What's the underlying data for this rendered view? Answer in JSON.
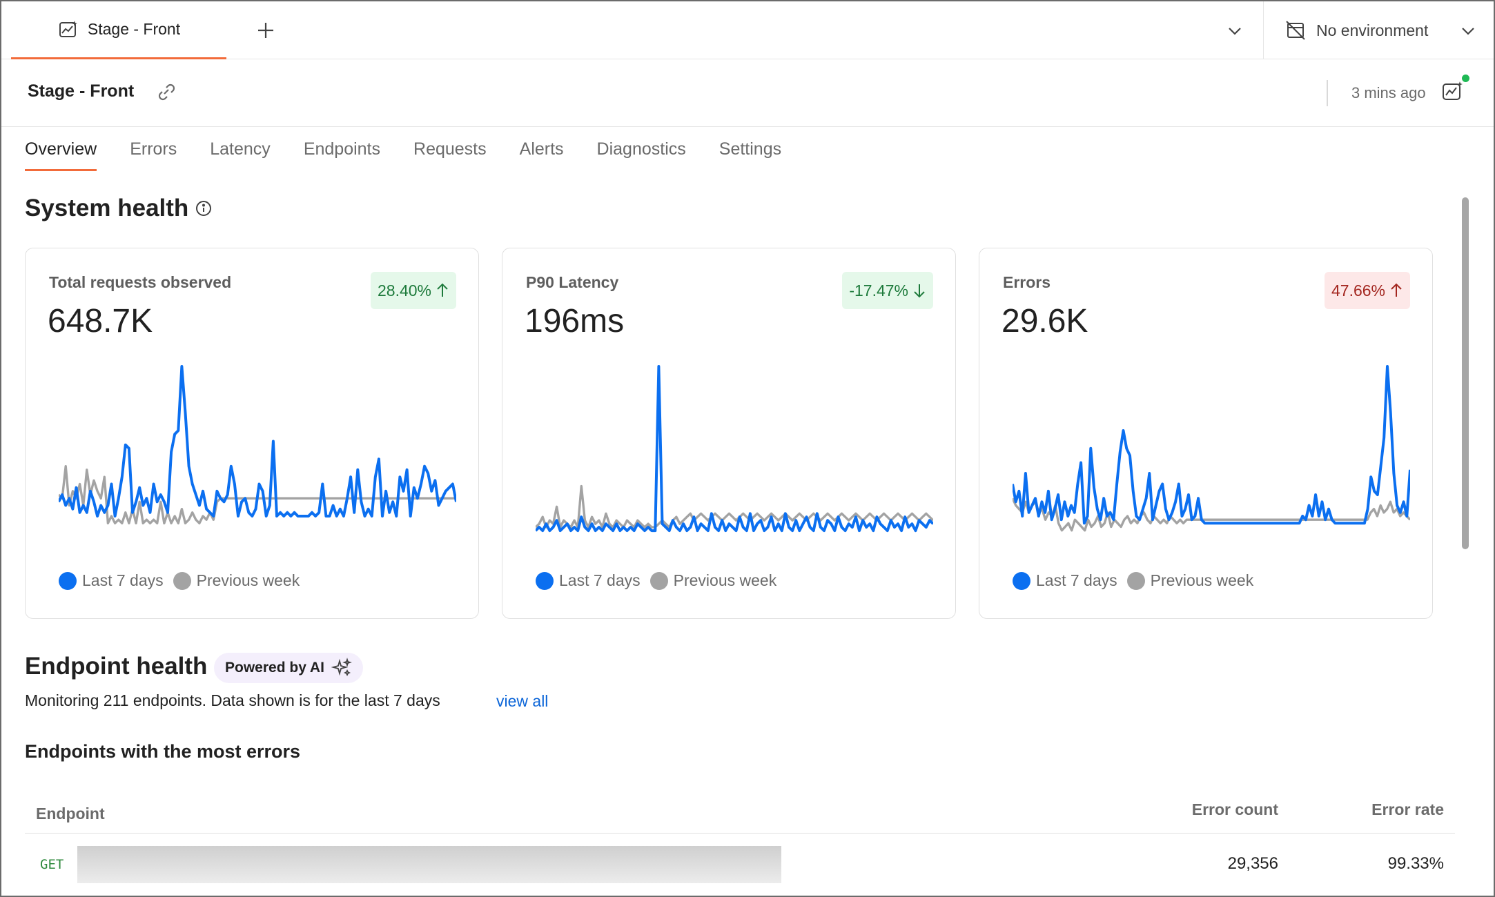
{
  "tabbar": {
    "active_tab": "Stage - Front",
    "environment": "No environment"
  },
  "header": {
    "title": "Stage - Front",
    "updated": "3 mins ago"
  },
  "nav": {
    "items": [
      "Overview",
      "Errors",
      "Latency",
      "Endpoints",
      "Requests",
      "Alerts",
      "Diagnostics",
      "Settings"
    ],
    "active": "Overview"
  },
  "system_health": {
    "title": "System health",
    "legend": {
      "current": "Last 7 days",
      "previous": "Previous week"
    },
    "cards": [
      {
        "label": "Total requests observed",
        "value": "648.7K",
        "change": "28.40%",
        "direction": "up",
        "status": "good"
      },
      {
        "label": "P90 Latency",
        "value": "196ms",
        "change": "-17.47%",
        "direction": "down",
        "status": "good"
      },
      {
        "label": "Errors",
        "value": "29.6K",
        "change": "47.66%",
        "direction": "up",
        "status": "bad"
      }
    ]
  },
  "colors": {
    "accent": "#f26b3a",
    "current_series": "#0b6ff0",
    "previous_series": "#a3a3a3",
    "link": "#0b65d8"
  },
  "chart_data": [
    {
      "type": "line",
      "series": [
        {
          "name": "Last 7 days",
          "values": [
            20,
            24,
            18,
            22,
            16,
            28,
            14,
            18,
            14,
            26,
            20,
            12,
            18,
            14,
            18,
            30,
            12,
            22,
            34,
            52,
            50,
            14,
            20,
            28,
            18,
            22,
            14,
            30,
            20,
            24,
            20,
            14,
            48,
            58,
            60,
            96,
            70,
            40,
            30,
            24,
            18,
            26,
            16,
            14,
            12,
            26,
            22,
            20,
            24,
            40,
            30,
            12,
            20,
            22,
            14,
            12,
            16,
            30,
            26,
            12,
            18,
            54,
            12,
            14,
            12,
            14,
            12,
            14,
            12,
            12,
            12,
            12,
            14,
            12,
            14,
            30,
            12,
            12,
            18,
            12,
            16,
            12,
            22,
            34,
            14,
            38,
            20,
            12,
            16,
            12,
            34,
            44,
            12,
            26,
            14,
            20,
            12,
            34,
            26,
            38,
            12,
            28,
            22,
            30,
            40,
            36,
            26,
            32,
            18,
            22,
            26,
            28,
            30,
            20
          ],
          "note": ""
        },
        {
          "name": "Previous week",
          "values": [
            24,
            22,
            40,
            18,
            26,
            22,
            30,
            18,
            38,
            24,
            32,
            26,
            22,
            34,
            8,
            12,
            8,
            10,
            8,
            14,
            8,
            16,
            8,
            20,
            8,
            10,
            8,
            10,
            8,
            20,
            8,
            14,
            8,
            12,
            8,
            16,
            8,
            10,
            14,
            10,
            8,
            12,
            10,
            14,
            10,
            20,
            22,
            22,
            22,
            22,
            22,
            22,
            22,
            22,
            22,
            22,
            22,
            22,
            22,
            22,
            22,
            22,
            22,
            22,
            22,
            22,
            22,
            22,
            22,
            22,
            22,
            22,
            22,
            22,
            22,
            22,
            22,
            22,
            22,
            22,
            22,
            22,
            22,
            22,
            22,
            22,
            22,
            22,
            22,
            22,
            22,
            22,
            22,
            22,
            22,
            22,
            22,
            22,
            22,
            22,
            22,
            22,
            22,
            22,
            22,
            22,
            22,
            22,
            22,
            22,
            22,
            22,
            22,
            22
          ]
        }
      ]
    },
    {
      "type": "line",
      "series": [
        {
          "name": "Last 7 days",
          "values": [
            4,
            6,
            4,
            8,
            4,
            6,
            10,
            4,
            6,
            8,
            4,
            6,
            4,
            12,
            6,
            4,
            8,
            4,
            6,
            4,
            8,
            6,
            4,
            8,
            4,
            6,
            4,
            6,
            4,
            8,
            6,
            4,
            6,
            4,
            4,
            100,
            8,
            6,
            4,
            10,
            6,
            4,
            8,
            4,
            6,
            12,
            4,
            8,
            6,
            4,
            14,
            6,
            4,
            10,
            4,
            8,
            6,
            4,
            12,
            6,
            4,
            14,
            4,
            8,
            10,
            4,
            6,
            12,
            4,
            8,
            4,
            14,
            6,
            4,
            10,
            4,
            8,
            12,
            6,
            4,
            14,
            6,
            4,
            10,
            8,
            4,
            12,
            6,
            4,
            8,
            6,
            12,
            4,
            10,
            6,
            8,
            4,
            12,
            8,
            6,
            4,
            10,
            6,
            8,
            4,
            12,
            6,
            8,
            4,
            10,
            8,
            6,
            10,
            8
          ],
          "note": ""
        },
        {
          "name": "Previous week",
          "values": [
            6,
            8,
            12,
            6,
            10,
            8,
            18,
            6,
            10,
            8,
            6,
            10,
            6,
            30,
            10,
            6,
            12,
            8,
            10,
            6,
            14,
            8,
            6,
            10,
            8,
            6,
            10,
            8,
            6,
            10,
            8,
            6,
            8,
            6,
            6,
            8,
            10,
            8,
            6,
            10,
            12,
            8,
            10,
            12,
            14,
            10,
            12,
            14,
            12,
            10,
            12,
            14,
            12,
            10,
            12,
            14,
            12,
            10,
            12,
            14,
            12,
            10,
            12,
            14,
            12,
            10,
            12,
            14,
            12,
            10,
            12,
            14,
            12,
            10,
            12,
            14,
            12,
            10,
            12,
            14,
            12,
            10,
            12,
            14,
            12,
            10,
            12,
            14,
            12,
            10,
            12,
            14,
            12,
            10,
            12,
            14,
            12,
            10,
            12,
            14,
            12,
            10,
            12,
            14,
            12,
            10,
            12,
            14,
            12,
            10,
            12,
            14,
            12,
            10
          ]
        }
      ]
    },
    {
      "type": "line",
      "series": [
        {
          "name": "Last 7 days",
          "values": [
            30,
            20,
            26,
            12,
            36,
            14,
            18,
            22,
            12,
            20,
            14,
            26,
            10,
            16,
            24,
            10,
            20,
            12,
            18,
            14,
            30,
            42,
            8,
            12,
            50,
            28,
            16,
            10,
            22,
            12,
            14,
            10,
            30,
            48,
            60,
            50,
            46,
            26,
            12,
            10,
            16,
            22,
            36,
            10,
            18,
            26,
            30,
            16,
            10,
            14,
            20,
            30,
            12,
            16,
            24,
            10,
            12,
            22,
            10,
            8,
            8,
            8,
            8,
            8,
            8,
            8,
            8,
            8,
            8,
            8,
            8,
            8,
            8,
            8,
            8,
            8,
            8,
            8,
            8,
            8,
            8,
            8,
            8,
            8,
            8,
            8,
            8,
            8,
            8,
            12,
            10,
            18,
            12,
            24,
            12,
            20,
            10,
            16,
            10,
            8,
            8,
            8,
            8,
            8,
            8,
            8,
            8,
            8,
            8,
            16,
            34,
            26,
            24,
            40,
            56,
            96,
            70,
            36,
            18,
            14,
            20,
            12,
            38
          ]
        },
        {
          "name": "Previous week",
          "values": [
            22,
            18,
            16,
            14,
            20,
            14,
            18,
            20,
            14,
            16,
            10,
            14,
            12,
            18,
            8,
            4,
            6,
            8,
            4,
            10,
            8,
            6,
            4,
            10,
            6,
            8,
            12,
            6,
            8,
            14,
            6,
            10,
            8,
            6,
            10,
            12,
            8,
            10,
            8,
            12,
            14,
            10,
            8,
            12,
            10,
            8,
            10,
            8,
            12,
            10,
            8,
            10,
            8,
            10,
            10,
            10,
            10,
            10,
            10,
            10,
            10,
            10,
            10,
            10,
            10,
            10,
            10,
            10,
            10,
            10,
            10,
            10,
            10,
            10,
            10,
            10,
            10,
            10,
            10,
            10,
            10,
            10,
            10,
            10,
            10,
            10,
            10,
            10,
            10,
            10,
            10,
            10,
            10,
            10,
            10,
            10,
            10,
            10,
            10,
            10,
            10,
            10,
            10,
            10,
            10,
            10,
            10,
            10,
            10,
            14,
            16,
            12,
            18,
            14,
            16,
            20,
            14,
            16,
            12,
            14,
            12,
            10
          ]
        }
      ]
    }
  ],
  "endpoint_health": {
    "title": "Endpoint health",
    "ai_badge": "Powered by AI",
    "description": "Monitoring 211 endpoints. Data shown is for the last 7 days",
    "view_all": "view all",
    "subtitle": "Endpoints with the most errors",
    "columns": {
      "endpoint": "Endpoint",
      "error_count": "Error count",
      "error_rate": "Error rate"
    },
    "rows": [
      {
        "method": "GET",
        "error_count": "29,356",
        "error_rate": "99.33%"
      }
    ]
  }
}
